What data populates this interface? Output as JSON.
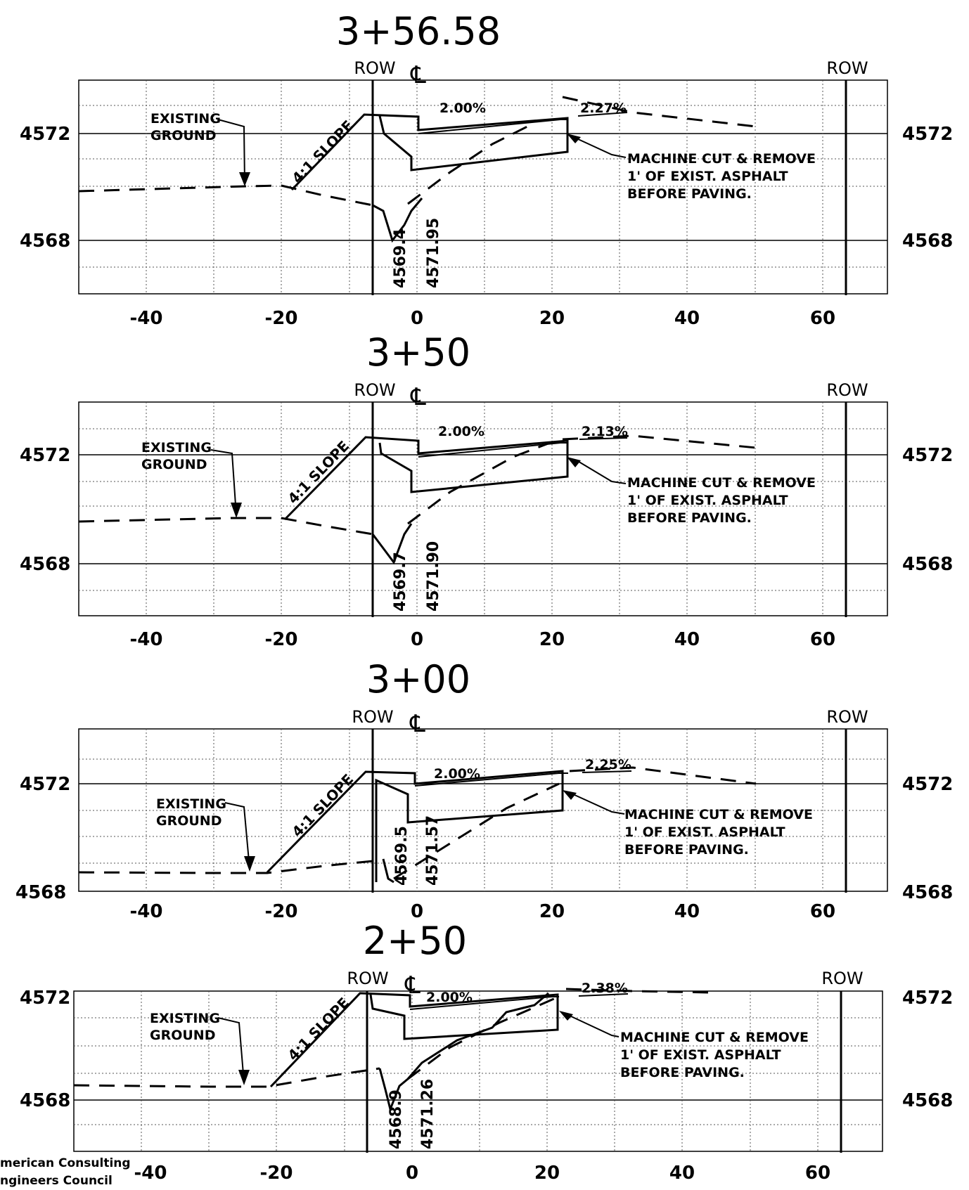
{
  "sections": [
    {
      "station": "3+56.58",
      "left_row_label": "ROW",
      "centerline_symbol": "℄",
      "right_row_label": "ROW",
      "elevations": [
        "4572",
        "4568"
      ],
      "x_ticks": [
        "-40",
        "-20",
        "0",
        "20",
        "40",
        "60"
      ],
      "existing_ground_label": [
        "EXISTING",
        "GROUND"
      ],
      "slope_label": "4:1 SLOPE",
      "cross_slope_left": "2.00%",
      "cross_slope_right": "2.27%",
      "note_lines": [
        "MACHINE CUT & REMOVE",
        "1' OF EXIST. ASPHALT",
        "BEFORE PAVING."
      ],
      "existing_elev": "4569.4",
      "design_elev": "4571.95"
    },
    {
      "station": "3+50",
      "left_row_label": "ROW",
      "centerline_symbol": "℄",
      "right_row_label": "ROW",
      "elevations": [
        "4572",
        "4568"
      ],
      "x_ticks": [
        "-40",
        "-20",
        "0",
        "20",
        "40",
        "60"
      ],
      "existing_ground_label": [
        "EXISTING",
        "GROUND"
      ],
      "slope_label": "4:1 SLOPE",
      "cross_slope_left": "2.00%",
      "cross_slope_right": "2.13%",
      "note_lines": [
        "MACHINE CUT & REMOVE",
        "1' OF EXIST. ASPHALT",
        "BEFORE PAVING."
      ],
      "existing_elev": "4569.7",
      "design_elev": "4571.90"
    },
    {
      "station": "3+00",
      "left_row_label": "ROW",
      "centerline_symbol": "℄",
      "right_row_label": "ROW",
      "elevations": [
        "4572",
        "4568"
      ],
      "x_ticks": [
        "-40",
        "-20",
        "0",
        "20",
        "40",
        "60"
      ],
      "existing_ground_label": [
        "EXISTING",
        "GROUND"
      ],
      "slope_label": "4:1 SLOPE",
      "cross_slope_left": "2.00%",
      "cross_slope_right": "2.25%",
      "note_lines": [
        "MACHINE CUT & REMOVE",
        "1' OF EXIST. ASPHALT",
        "BEFORE PAVING."
      ],
      "existing_elev": "4569.5",
      "design_elev": "4571.57"
    },
    {
      "station": "2+50",
      "left_row_label": "ROW",
      "centerline_symbol": "℄",
      "right_row_label": "ROW",
      "elevations": [
        "4572",
        "4568"
      ],
      "x_ticks": [
        "-40",
        "-20",
        "0",
        "20",
        "40",
        "60"
      ],
      "existing_ground_label": [
        "EXISTING",
        "GROUND"
      ],
      "slope_label": "4:1 SLOPE",
      "cross_slope_left": "2.00%",
      "cross_slope_right": "2.38%",
      "note_lines": [
        "MACHINE CUT & REMOVE",
        "1' OF EXIST. ASPHALT",
        "BEFORE PAVING."
      ],
      "existing_elev": "4568.9",
      "design_elev": "4571.26"
    }
  ],
  "credit": [
    "merican Consulting",
    "ngineers Council"
  ]
}
